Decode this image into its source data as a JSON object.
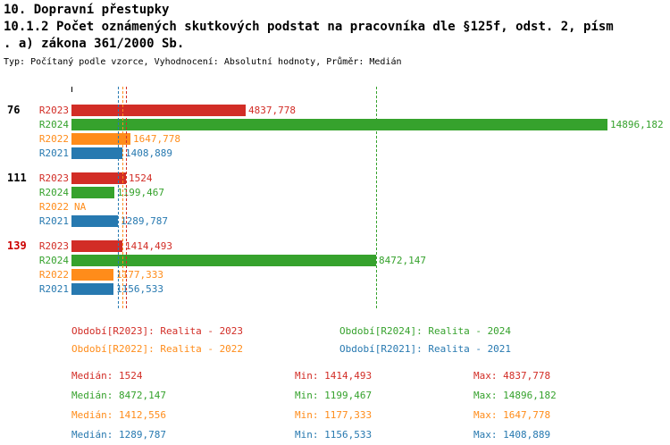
{
  "title": "10. Dopravní přestupky",
  "subtitle_line1": "10.1.2 Počet oznámených skutkových podstat na pracovníka dle §125f, odst. 2, písm",
  "subtitle_line2": ". a) zákona 361/2000 Sb.",
  "meta": "Typ: Počítaný podle vzorce, Vyhodnocení: Absolutní hodnoty, Průměr: Medián",
  "colors": {
    "R2023": "#d22d26",
    "R2024": "#36a22d",
    "R2022": "#ff8c1a",
    "R2021": "#2779b0",
    "group_label_highlight": "#cc0000"
  },
  "chart_data": {
    "type": "bar",
    "orientation": "horizontal",
    "xlim": [
      0,
      14896.182
    ],
    "grid": false,
    "series_order": [
      "R2023",
      "R2024",
      "R2022",
      "R2021"
    ],
    "groups": [
      {
        "label": "76",
        "bars": [
          {
            "series": "R2023",
            "value": 4837.778,
            "value_label": "4837,778"
          },
          {
            "series": "R2024",
            "value": 14896.182,
            "value_label": "14896,182"
          },
          {
            "series": "R2022",
            "value": 1647.778,
            "value_label": "1647,778"
          },
          {
            "series": "R2021",
            "value": 1408.889,
            "value_label": "1408,889"
          }
        ]
      },
      {
        "label": "111",
        "bars": [
          {
            "series": "R2023",
            "value": 1524,
            "value_label": "1524"
          },
          {
            "series": "R2024",
            "value": 1199.467,
            "value_label": "1199,467"
          },
          {
            "series": "R2022",
            "value": null,
            "value_label": "NA"
          },
          {
            "series": "R2021",
            "value": 1289.787,
            "value_label": "1289,787"
          }
        ]
      },
      {
        "label": "139",
        "bars": [
          {
            "series": "R2023",
            "value": 1414.493,
            "value_label": "1414,493"
          },
          {
            "series": "R2024",
            "value": 8472.147,
            "value_label": "8472,147"
          },
          {
            "series": "R2022",
            "value": 1177.333,
            "value_label": "1177,333"
          },
          {
            "series": "R2021",
            "value": 1156.533,
            "value_label": "1156,533"
          }
        ]
      }
    ],
    "median_lines": [
      {
        "series": "R2023",
        "value": 1524
      },
      {
        "series": "R2024",
        "value": 8472.147
      },
      {
        "series": "R2022",
        "value": 1412.556
      },
      {
        "series": "R2021",
        "value": 1289.787
      }
    ]
  },
  "legend": {
    "r2023": "Období[R2023]: Realita - 2023",
    "r2024": "Období[R2024]: Realita - 2024",
    "r2022": "Období[R2022]: Realita - 2022",
    "r2021": "Období[R2021]: Realita - 2021"
  },
  "stats": [
    {
      "median": "Medián: 1524",
      "min": "Min: 1414,493",
      "max": "Max: 4837,778"
    },
    {
      "median": "Medián: 8472,147",
      "min": "Min: 1199,467",
      "max": "Max: 14896,182"
    },
    {
      "median": "Medián: 1412,556",
      "min": "Min: 1177,333",
      "max": "Max: 1647,778"
    },
    {
      "median": "Medián: 1289,787",
      "min": "Min: 1156,533",
      "max": "Max: 1408,889"
    }
  ]
}
